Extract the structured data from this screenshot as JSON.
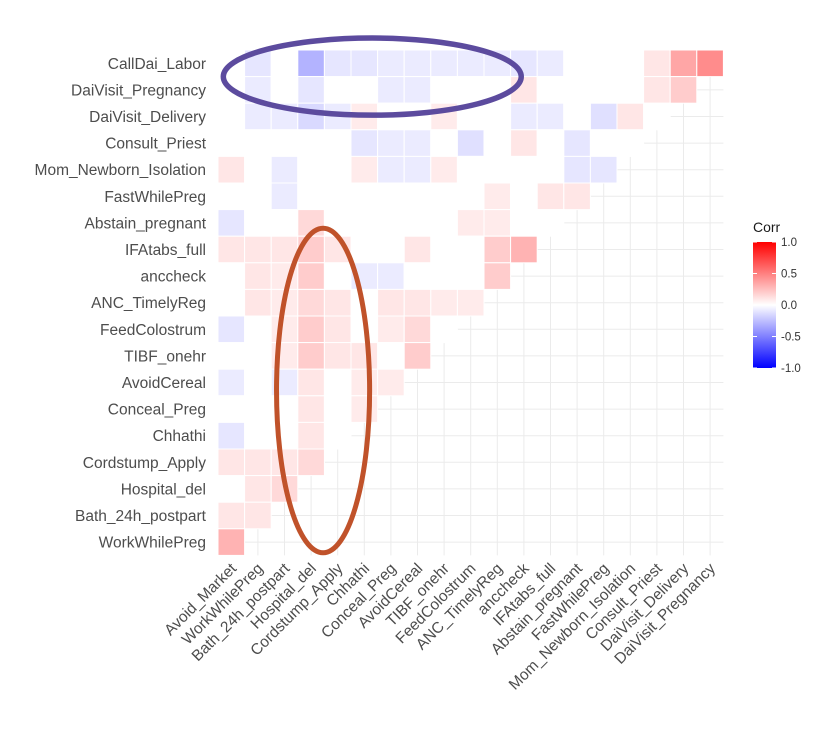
{
  "chart_data": {
    "type": "heatmap",
    "title": "",
    "xlabel": "",
    "ylabel": "",
    "x_categories": [
      "Avoid_Market",
      "WorkWhilePreg",
      "Bath_24h_postpart",
      "Hospital_del",
      "Cordstump_Apply",
      "Chhathi",
      "Conceal_Preg",
      "AvoidCereal",
      "TIBF_onehr",
      "FeedColostrum",
      "ANC_TimelyReg",
      "anccheck",
      "IFAtabs_full",
      "Abstain_pregnant",
      "FastWhilePreg",
      "Mom_Newborn_Isolation",
      "Consult_Priest",
      "DaiVisit_Delivery",
      "DaiVisit_Pregnancy"
    ],
    "y_categories": [
      "CallDai_Labor",
      "DaiVisit_Pregnancy",
      "DaiVisit_Delivery",
      "Consult_Priest",
      "Mom_Newborn_Isolation",
      "FastWhilePreg",
      "Abstain_pregnant",
      "IFAtabs_full",
      "anccheck",
      "ANC_TimelyReg",
      "FeedColostrum",
      "TIBF_onehr",
      "AvoidCereal",
      "Conceal_Preg",
      "Chhathi",
      "Cordstump_Apply",
      "Hospital_del",
      "Bath_24h_postpart",
      "WorkWhilePreg"
    ],
    "values": [
      [
        0,
        -0.1,
        0,
        -0.3,
        -0.1,
        -0.1,
        -0.08,
        -0.08,
        -0.08,
        -0.08,
        -0.08,
        -0.1,
        -0.08,
        0,
        0,
        0,
        0.1,
        0.35,
        0.45
      ],
      [
        0,
        -0.08,
        0,
        -0.1,
        0,
        0,
        -0.08,
        -0.08,
        0,
        0,
        0,
        0.1,
        0,
        0,
        0,
        0,
        0.1,
        0.2,
        null
      ],
      [
        0,
        -0.08,
        -0.08,
        -0.15,
        -0.08,
        0.08,
        0,
        0,
        0.08,
        0,
        0,
        -0.08,
        -0.08,
        0,
        -0.12,
        0.1,
        0,
        null,
        null
      ],
      [
        0,
        0,
        0,
        0,
        0,
        -0.1,
        -0.08,
        -0.08,
        0,
        -0.12,
        0,
        0.1,
        0,
        -0.1,
        0,
        0,
        null,
        null,
        null
      ],
      [
        0.1,
        0,
        -0.08,
        0,
        0,
        0.08,
        -0.08,
        -0.08,
        0.08,
        0,
        0,
        0,
        0,
        -0.1,
        -0.1,
        null,
        null,
        null,
        null
      ],
      [
        0,
        0,
        -0.08,
        0,
        0,
        0,
        0,
        0,
        0,
        0,
        0.08,
        0,
        0.1,
        0.1,
        null,
        null,
        null,
        null,
        null
      ],
      [
        -0.1,
        0,
        0,
        0.15,
        0,
        0,
        0,
        0,
        0,
        0.08,
        0.08,
        0,
        0,
        null,
        null,
        null,
        null,
        null,
        null
      ],
      [
        0.1,
        0.1,
        0.1,
        0.2,
        0.1,
        0,
        0,
        0.1,
        0,
        0,
        0.2,
        0.3,
        null,
        null,
        null,
        null,
        null,
        null,
        null
      ],
      [
        0,
        0.1,
        0.08,
        0.2,
        0,
        -0.08,
        -0.08,
        0,
        0,
        0,
        0.2,
        null,
        null,
        null,
        null,
        null,
        null,
        null,
        null
      ],
      [
        0,
        0.1,
        0.08,
        0.15,
        0.1,
        0,
        0.1,
        0.1,
        0.08,
        0.08,
        null,
        null,
        null,
        null,
        null,
        null,
        null,
        null,
        null
      ],
      [
        -0.1,
        0,
        0.08,
        0.2,
        0.1,
        0,
        0.08,
        0.15,
        0,
        null,
        null,
        null,
        null,
        null,
        null,
        null,
        null,
        null,
        null
      ],
      [
        0,
        0,
        0.08,
        0.2,
        0.1,
        0.1,
        0,
        0.2,
        null,
        null,
        null,
        null,
        null,
        null,
        null,
        null,
        null,
        null,
        null
      ],
      [
        -0.08,
        0,
        -0.08,
        0.1,
        0,
        0.08,
        0.08,
        null,
        null,
        null,
        null,
        null,
        null,
        null,
        null,
        null,
        null,
        null,
        null
      ],
      [
        0,
        0,
        0,
        0.1,
        0,
        0.08,
        null,
        null,
        null,
        null,
        null,
        null,
        null,
        null,
        null,
        null,
        null,
        null,
        null
      ],
      [
        -0.1,
        0,
        0,
        0.1,
        0,
        null,
        null,
        null,
        null,
        null,
        null,
        null,
        null,
        null,
        null,
        null,
        null,
        null,
        null
      ],
      [
        0.1,
        0.1,
        0.1,
        0.15,
        null,
        null,
        null,
        null,
        null,
        null,
        null,
        null,
        null,
        null,
        null,
        null,
        null,
        null,
        null
      ],
      [
        0,
        0.1,
        0.15,
        null,
        null,
        null,
        null,
        null,
        null,
        null,
        null,
        null,
        null,
        null,
        null,
        null,
        null,
        null,
        null
      ],
      [
        0.1,
        0.1,
        null,
        null,
        null,
        null,
        null,
        null,
        null,
        null,
        null,
        null,
        null,
        null,
        null,
        null,
        null,
        null,
        null
      ],
      [
        0.3,
        null,
        null,
        null,
        null,
        null,
        null,
        null,
        null,
        null,
        null,
        null,
        null,
        null,
        null,
        null,
        null,
        null,
        null
      ]
    ],
    "legend": {
      "title": "Corr",
      "ticks": [
        1.0,
        0.5,
        0.0,
        -0.5,
        -1.0
      ],
      "tick_labels": [
        "1.0",
        "0.5",
        "0.0",
        "-0.5",
        "-1.0"
      ],
      "low_color": "#0000ff",
      "mid_color": "#ffffff",
      "high_color": "#ff0000",
      "position": "right"
    },
    "annotations": [
      {
        "shape": "ellipse",
        "color": "#5c4b9e",
        "encloses_rows": [
          "CallDai_Labor",
          "DaiVisit_Pregnancy"
        ]
      },
      {
        "shape": "ellipse",
        "color": "#c0522a",
        "encloses_columns": [
          "Hospital_del",
          "Cordstump_Apply"
        ]
      }
    ]
  }
}
